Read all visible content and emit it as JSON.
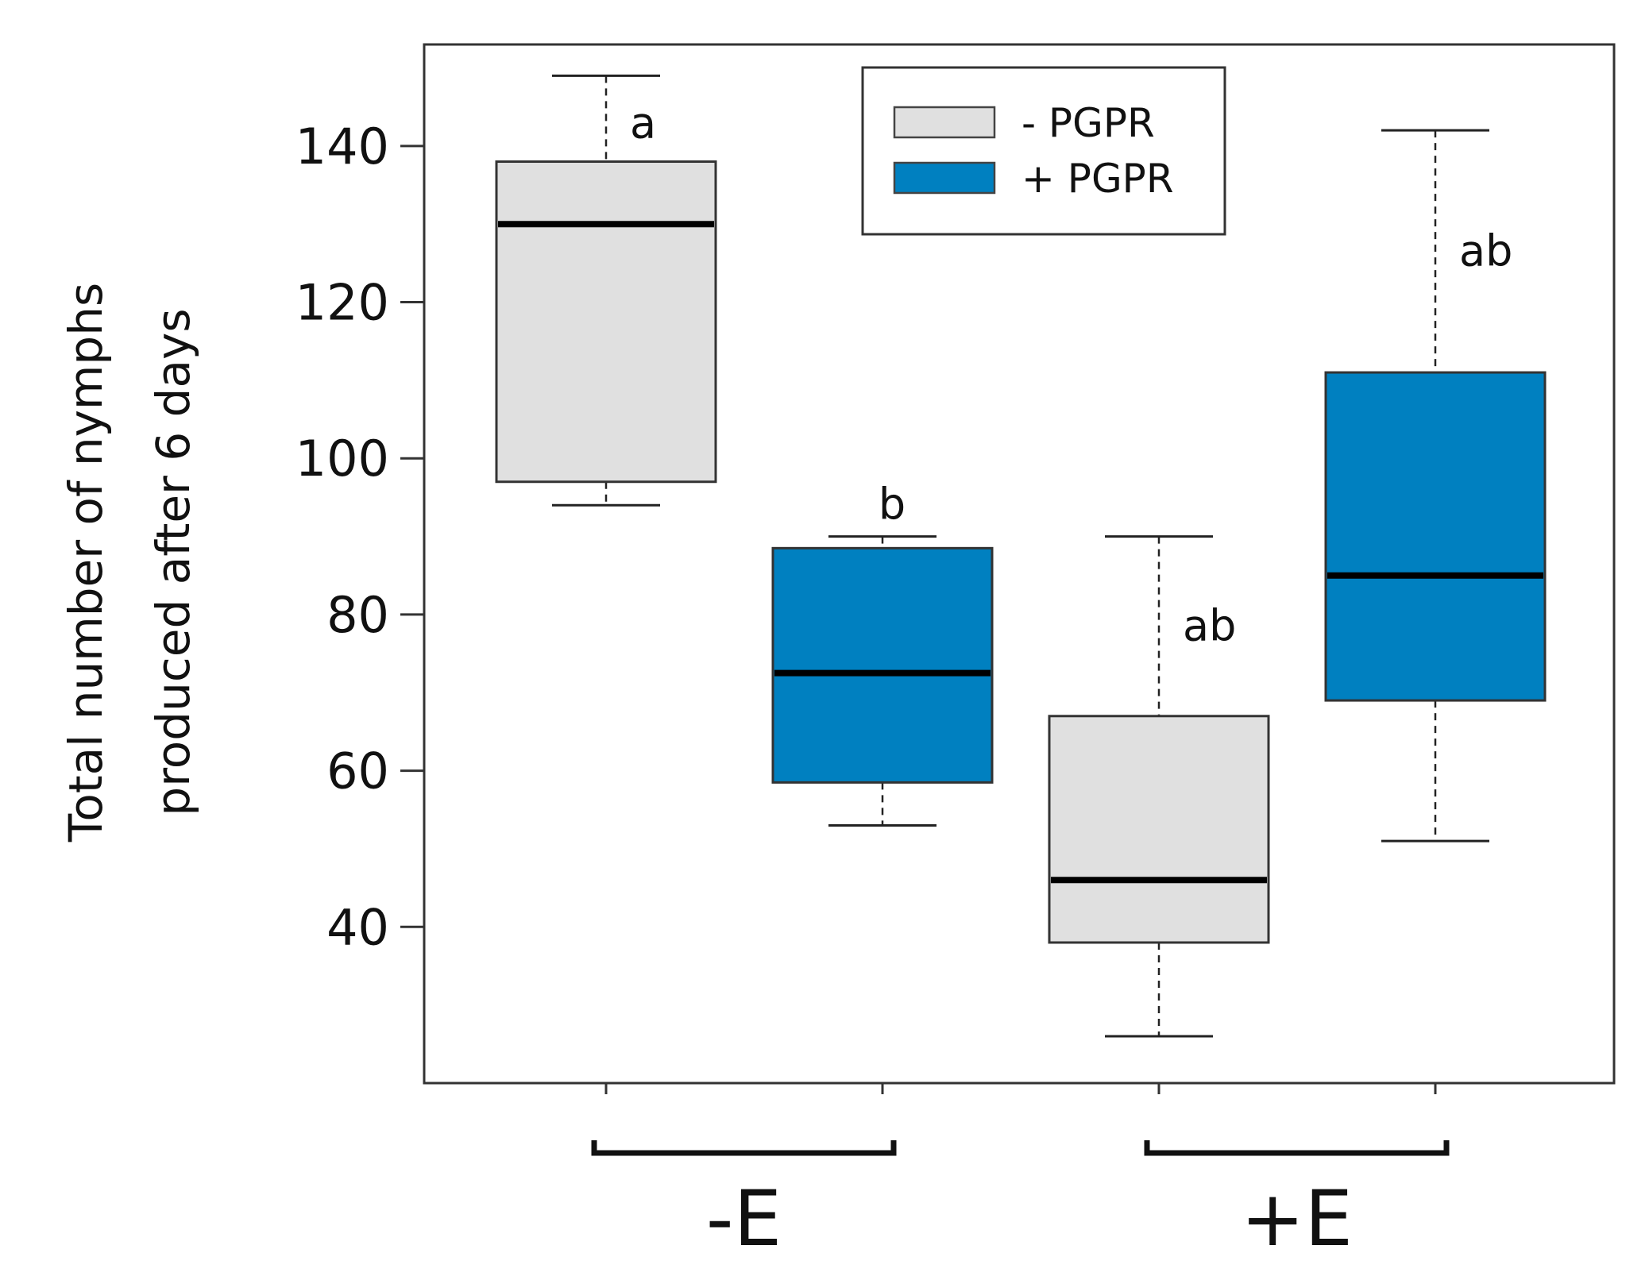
{
  "chart_data": {
    "type": "box",
    "ylabel": [
      "Total number of nymphs",
      "produced after 6 days"
    ],
    "ylim": [
      20,
      153
    ],
    "yticks": [
      40,
      60,
      80,
      100,
      120,
      140
    ],
    "groups": [
      {
        "label": "-E",
        "members": [
          0,
          1
        ]
      },
      {
        "label": "+E",
        "members": [
          2,
          3
        ]
      }
    ],
    "legend": {
      "position": "top-center",
      "entries": [
        {
          "label": "- PGPR",
          "color": "#e0e0e0"
        },
        {
          "label": "+ PGPR",
          "color": "#0080c0"
        }
      ]
    },
    "boxes": [
      {
        "group": "-E",
        "series": "- PGPR",
        "min": 94,
        "q1": 97,
        "median": 130,
        "q3": 138,
        "max": 149,
        "sig": "a",
        "color": "#e0e0e0"
      },
      {
        "group": "-E",
        "series": "+ PGPR",
        "min": 53,
        "q1": 58.5,
        "median": 72.5,
        "q3": 88.5,
        "max": 90,
        "sig": "b",
        "color": "#0080c0"
      },
      {
        "group": "+E",
        "series": "- PGPR",
        "min": 26,
        "q1": 38,
        "median": 46,
        "q3": 67,
        "max": 90,
        "sig": "ab",
        "color": "#e0e0e0"
      },
      {
        "group": "+E",
        "series": "+ PGPR",
        "min": 51,
        "q1": 69,
        "median": 85,
        "q3": 111,
        "max": 142,
        "sig": "ab",
        "color": "#0080c0"
      }
    ]
  }
}
